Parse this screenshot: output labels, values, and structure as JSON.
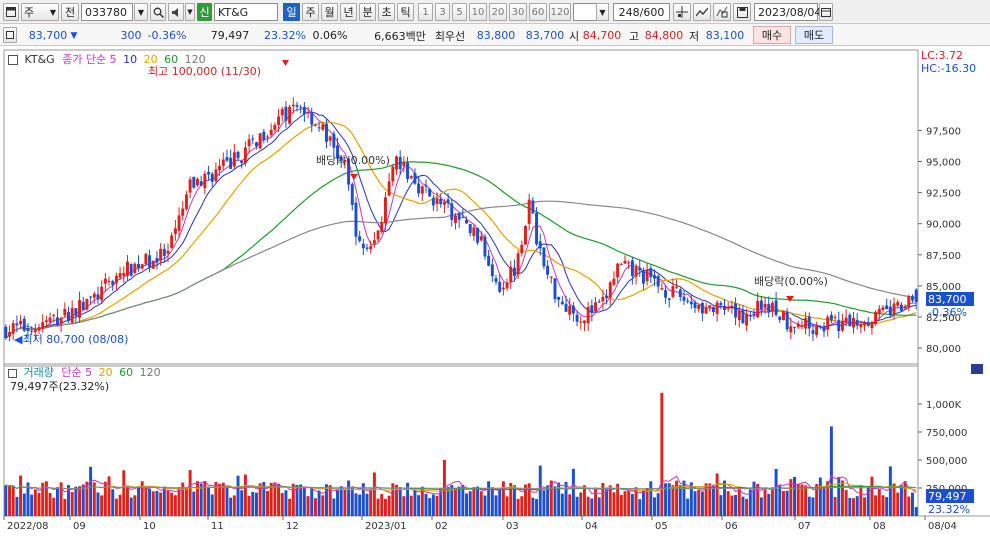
{
  "toolbar": {
    "period_select": "주",
    "jeon_label": "전",
    "stock_code": "033780",
    "new_badge": "신",
    "stock_name": "KT&G",
    "periods": [
      "일",
      "주",
      "월",
      "년",
      "분",
      "초",
      "틱"
    ],
    "minutes": [
      "1",
      "3",
      "5",
      "10",
      "20",
      "30",
      "60",
      "120"
    ],
    "count_display": "248/600",
    "date": "2023/08/04"
  },
  "quote": {
    "price": "83,700",
    "change_arrow": "▼",
    "change": "300",
    "change_pct": "-0.36%",
    "volume": "79,497",
    "vol_ratio": "23.32%",
    "turnover": "0.06%",
    "amount": "6,663백만",
    "best_label": "최우선",
    "ask": "83,800",
    "bid": "83,700",
    "open_label": "시",
    "open": "84,700",
    "high_label": "고",
    "high": "84,800",
    "low_label": "저",
    "low": "83,100",
    "buy_label": "매수",
    "sell_label": "매도"
  },
  "legend": {
    "name": "KT&G",
    "close_label": "종가 단순",
    "ma": [
      "5",
      "10",
      "20",
      "60",
      "120"
    ],
    "vol_label": "거래량",
    "vol_ma_label": "단순",
    "vol_ma": [
      "5",
      "20",
      "60",
      "120"
    ],
    "vol_value": "79,497주(23.32%)"
  },
  "annotations": {
    "high": "최고 100,000 (11/30)",
    "low": "최저 80,700 (08/08)",
    "div1": "배당락(0.00%)",
    "div2": "배당락(0.00%)"
  },
  "right_info": {
    "lc": "LC:3.72",
    "hc": "HC:-16.30",
    "price_tag": "83,700",
    "pct_tag": "-0.36%",
    "vol_tag": "79,497",
    "vol_pct_tag": "23.32%"
  },
  "colors": {
    "up": "#e0201b",
    "down": "#1c4fd0",
    "ma5": "#cc33cc",
    "ma10": "#2233cc",
    "ma20": "#e6a200",
    "ma60": "#1f9c2a",
    "ma120": "#888888"
  },
  "chart_data": {
    "type": "candlestick",
    "price_axis": {
      "ylim": [
        79200,
        103000
      ],
      "ticks": [
        "80,000",
        "82,500",
        "85,000",
        "87,500",
        "90,000",
        "92,500",
        "95,000",
        "97,500"
      ],
      "tick_values": [
        80000,
        82500,
        85000,
        87500,
        90000,
        92500,
        95000,
        97500
      ]
    },
    "volume_axis": {
      "ylim": [
        0,
        1250000
      ],
      "ticks": [
        "250,000",
        "500,000",
        "750,000",
        "1,000K"
      ],
      "tick_values": [
        250000,
        500000,
        750000,
        1000000
      ]
    },
    "x_labels": [
      "2022/08",
      "09",
      "10",
      "11",
      "12",
      "2023/01",
      "02",
      "03",
      "04",
      "05",
      "06",
      "07",
      "08",
      "08/04"
    ],
    "price_path": [
      [
        0,
        81500
      ],
      [
        8,
        81700
      ],
      [
        16,
        82600
      ],
      [
        24,
        84000
      ],
      [
        30,
        85800
      ],
      [
        36,
        86800
      ],
      [
        44,
        87500
      ],
      [
        50,
        93000
      ],
      [
        56,
        94000
      ],
      [
        64,
        95500
      ],
      [
        72,
        98000
      ],
      [
        80,
        99500
      ],
      [
        86,
        97500
      ],
      [
        92,
        94500
      ],
      [
        96,
        88000
      ],
      [
        100,
        88500
      ],
      [
        106,
        95000
      ],
      [
        114,
        92500
      ],
      [
        120,
        91000
      ],
      [
        128,
        89000
      ],
      [
        134,
        85000
      ],
      [
        138,
        86500
      ],
      [
        142,
        91500
      ],
      [
        146,
        86500
      ],
      [
        150,
        84000
      ],
      [
        156,
        82500
      ],
      [
        162,
        83500
      ],
      [
        166,
        86500
      ],
      [
        172,
        86000
      ],
      [
        180,
        84500
      ],
      [
        190,
        83200
      ],
      [
        200,
        82500
      ],
      [
        206,
        83700
      ],
      [
        212,
        82200
      ],
      [
        218,
        81800
      ],
      [
        228,
        82000
      ],
      [
        236,
        82600
      ],
      [
        247,
        83700
      ]
    ],
    "ma_periods": [
      5,
      10,
      20,
      60,
      120
    ],
    "volume_spikes": [
      [
        178,
        1100000
      ],
      [
        224,
        800000
      ],
      [
        119,
        500000
      ],
      [
        145,
        450000
      ],
      [
        50,
        410000
      ],
      [
        63,
        360000
      ]
    ]
  }
}
